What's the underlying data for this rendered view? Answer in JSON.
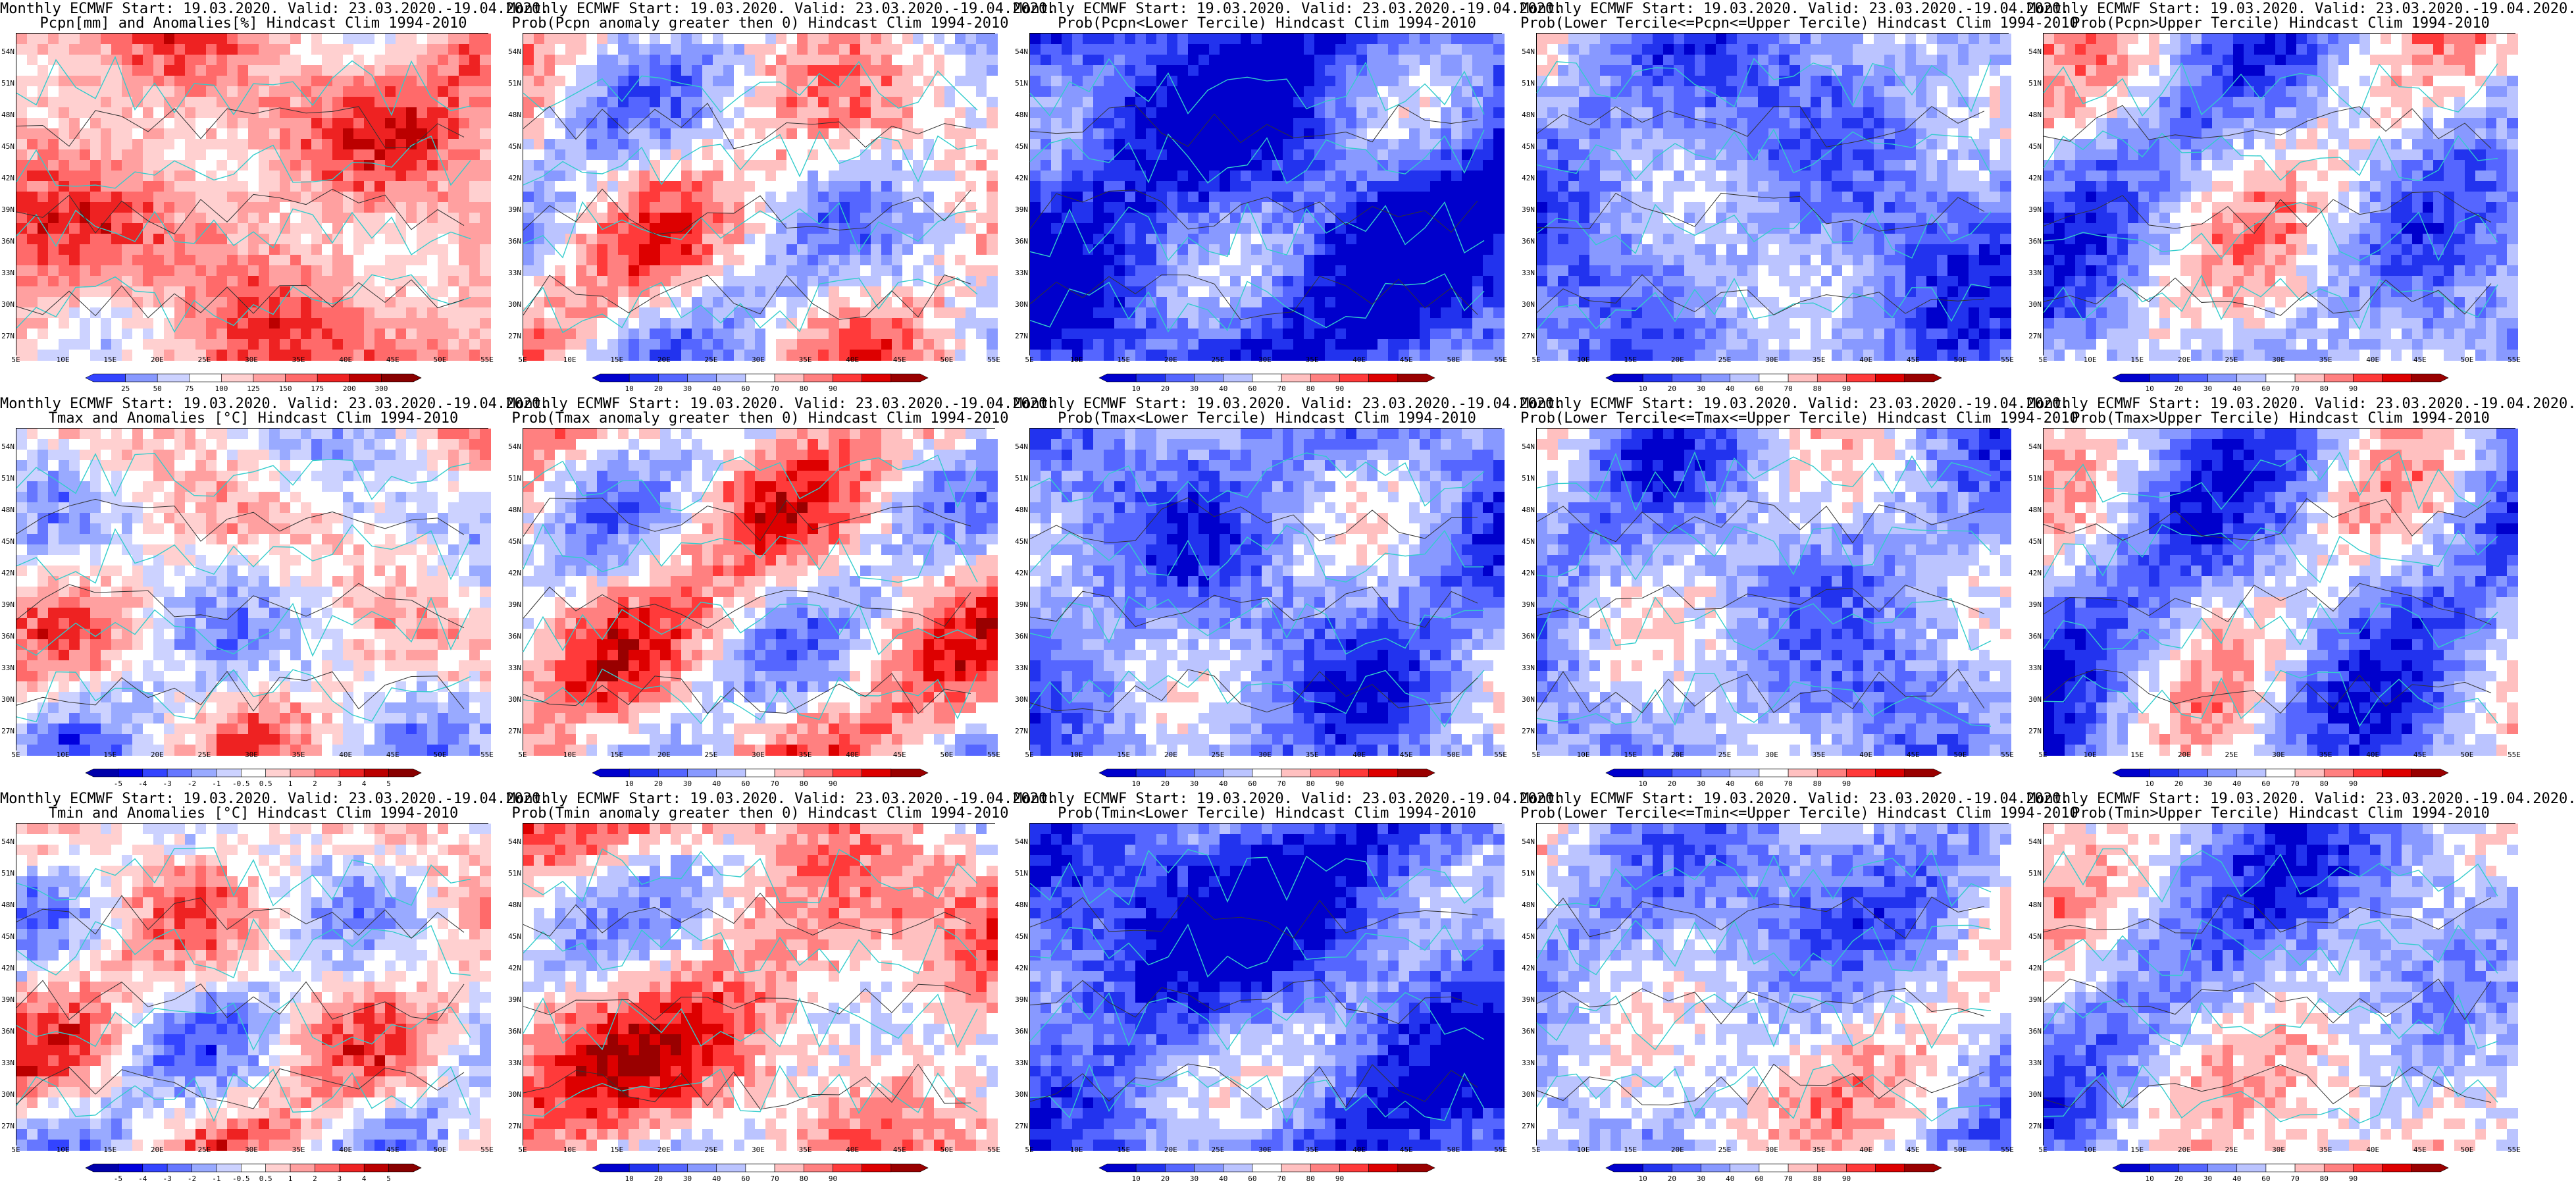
{
  "figure": {
    "latitude_labels": [
      "54N",
      "51N",
      "48N",
      "45N",
      "42N",
      "39N",
      "36N",
      "33N",
      "30N",
      "27N"
    ],
    "longitude_labels": [
      "5E",
      "10E",
      "15E",
      "20E",
      "25E",
      "30E",
      "35E",
      "40E",
      "45E",
      "50E",
      "55E"
    ],
    "colors": {
      "frame": "#000000",
      "coast": "#33cccc",
      "contour": "#333333"
    }
  },
  "panels": [
    {
      "title1": "Monthly ECMWF Start: 19.03.2020. Valid: 23.03.2020.-19.04.2020.",
      "title2": "Pcpn[mm] and Anomalies[%]",
      "title2b": " Hindcast Clim 1994-2010",
      "kind": "pcpn_anom",
      "bias": 0.55,
      "colorbar": [
        "25",
        "50",
        "75",
        "100",
        "125",
        "150",
        "175",
        "200",
        "300"
      ]
    },
    {
      "title1": "Monthly ECMWF Start: 19.03.2020. Valid: 23.03.2020.-19.04.2020.",
      "title2": "Prob(Pcpn anomaly greater then 0)",
      "title2b": " Hindcast Clim 1994-2010",
      "kind": "prob",
      "bias": 0.5,
      "colorbar": [
        "10",
        "20",
        "30",
        "40",
        "60",
        "70",
        "80",
        "90"
      ]
    },
    {
      "title1": "Monthly ECMWF Start: 19.03.2020. Valid: 23.03.2020.-19.04.2020.",
      "title2": "Prob(Pcpn<Lower Tercile)",
      "title2b": " Hindcast Clim 1994-2010",
      "kind": "prob",
      "bias": 0.15,
      "colorbar": [
        "10",
        "20",
        "30",
        "40",
        "60",
        "70",
        "80",
        "90"
      ]
    },
    {
      "title1": "Monthly ECMWF Start: 19.03.2020. Valid: 23.03.2020.-19.04.2020.",
      "title2": "Prob(Lower Tercile<=Pcpn<=Upper Tercile)",
      "title2b": " Hindcast Clim 1994-2010",
      "kind": "prob",
      "bias": 0.3,
      "colorbar": [
        "10",
        "20",
        "30",
        "40",
        "60",
        "70",
        "80",
        "90"
      ]
    },
    {
      "title1": "Monthly ECMWF Start: 19.03.2020. Valid: 23.03.2020.-19.04.2020.",
      "title2": "Prob(Pcpn>Upper Tercile)",
      "title2b": " Hindcast Clim 1994-2010",
      "kind": "prob",
      "bias": 0.4,
      "colorbar": [
        "10",
        "20",
        "30",
        "40",
        "60",
        "70",
        "80",
        "90"
      ]
    },
    {
      "title1": "Monthly ECMWF Start: 19.03.2020. Valid: 23.03.2020.-19.04.2020.",
      "title2": "Tmax and Anomalies [°C]",
      "title2b": " Hindcast Clim 1994-2010",
      "kind": "temp_anom",
      "bias": 0.5,
      "colorbar": [
        "-5",
        "-4",
        "-3",
        "-2",
        "-1",
        "-0.5",
        "0.5",
        "1",
        "2",
        "3",
        "4",
        "5"
      ]
    },
    {
      "title1": "Monthly ECMWF Start: 19.03.2020. Valid: 23.03.2020.-19.04.2020.",
      "title2": "Prob(Tmax anomaly greater then 0)",
      "title2b": " Hindcast Clim 1994-2010",
      "kind": "prob",
      "bias": 0.55,
      "colorbar": [
        "10",
        "20",
        "30",
        "40",
        "60",
        "70",
        "80",
        "90"
      ]
    },
    {
      "title1": "Monthly ECMWF Start: 19.03.2020. Valid: 23.03.2020.-19.04.2020.",
      "title2": "Prob(Tmax<Lower Tercile)",
      "title2b": " Hindcast Clim 1994-2010",
      "kind": "prob",
      "bias": 0.3,
      "colorbar": [
        "10",
        "20",
        "30",
        "40",
        "60",
        "70",
        "80",
        "90"
      ]
    },
    {
      "title1": "Monthly ECMWF Start: 19.03.2020. Valid: 23.03.2020.-19.04.2020.",
      "title2": "Prob(Lower Tercile<=Tmax<=Upper Tercile)",
      "title2b": " Hindcast Clim 1994-2010",
      "kind": "prob",
      "bias": 0.35,
      "colorbar": [
        "10",
        "20",
        "30",
        "40",
        "60",
        "70",
        "80",
        "90"
      ]
    },
    {
      "title1": "Monthly ECMWF Start: 19.03.2020. Valid: 23.03.2020.-19.04.2020.",
      "title2": "Prob(Tmax>Upper Tercile)",
      "title2b": " Hindcast Clim 1994-2010",
      "kind": "prob",
      "bias": 0.35,
      "colorbar": [
        "10",
        "20",
        "30",
        "40",
        "60",
        "70",
        "80",
        "90"
      ]
    },
    {
      "title1": "Monthly ECMWF Start: 19.03.2020. Valid: 23.03.2020.-19.04.2020.",
      "title2": "Tmin and Anomalies [°C]",
      "title2b": " Hindcast Clim 1994-2010",
      "kind": "temp_anom",
      "bias": 0.52,
      "colorbar": [
        "-5",
        "-4",
        "-3",
        "-2",
        "-1",
        "-0.5",
        "0.5",
        "1",
        "2",
        "3",
        "4",
        "5"
      ]
    },
    {
      "title1": "Monthly ECMWF Start: 19.03.2020. Valid: 23.03.2020.-19.04.2020.",
      "title2": "Prob(Tmin anomaly greater then 0)",
      "title2b": " Hindcast Clim 1994-2010",
      "kind": "prob",
      "bias": 0.6,
      "colorbar": [
        "10",
        "20",
        "30",
        "40",
        "60",
        "70",
        "80",
        "90"
      ]
    },
    {
      "title1": "Monthly ECMWF Start: 19.03.2020. Valid: 23.03.2020.-19.04.2020.",
      "title2": "Prob(Tmin<Lower Tercile)",
      "title2b": " Hindcast Clim 1994-2010",
      "kind": "prob",
      "bias": 0.2,
      "colorbar": [
        "10",
        "20",
        "30",
        "40",
        "60",
        "70",
        "80",
        "90"
      ]
    },
    {
      "title1": "Monthly ECMWF Start: 19.03.2020. Valid: 23.03.2020.-19.04.2020.",
      "title2": "Prob(Lower Tercile<=Tmin<=Upper Tercile)",
      "title2b": " Hindcast Clim 1994-2010",
      "kind": "prob",
      "bias": 0.4,
      "colorbar": [
        "10",
        "20",
        "30",
        "40",
        "60",
        "70",
        "80",
        "90"
      ]
    },
    {
      "title1": "Monthly ECMWF Start: 19.03.2020. Valid: 23.03.2020.-19.04.2020.",
      "title2": "Prob(Tmin>Upper Tercile)",
      "title2b": " Hindcast Clim 1994-2010",
      "kind": "prob",
      "bias": 0.4,
      "colorbar": [
        "10",
        "20",
        "30",
        "40",
        "60",
        "70",
        "80",
        "90"
      ]
    }
  ],
  "chart_data": {
    "type": "heatmap",
    "grid": "3x5 panels",
    "domain": {
      "lon_range": [
        5,
        55
      ],
      "lat_range": [
        25,
        55
      ]
    },
    "valid_period": "23.03.2020.-19.04.2020.",
    "forecast_start": "19.03.2020.",
    "climatology": "1994-2010",
    "rows": [
      [
        "Pcpn[mm] and Anomalies[%]",
        "Prob(Pcpn anomaly greater then 0)",
        "Prob(Pcpn<Lower Tercile)",
        "Prob(Lower Tercile<=Pcpn<=Upper Tercile)",
        "Prob(Pcpn>Upper Tercile)"
      ],
      [
        "Tmax and Anomalies [°C]",
        "Prob(Tmax anomaly greater then 0)",
        "Prob(Tmax<Lower Tercile)",
        "Prob(Lower Tercile<=Tmax<=Upper Tercile)",
        "Prob(Tmax>Upper Tercile)"
      ],
      [
        "Tmin and Anomalies [°C]",
        "Prob(Tmin anomaly greater then 0)",
        "Prob(Tmin<Lower Tercile)",
        "Prob(Lower Tercile<=Tmin<=Upper Tercile)",
        "Prob(Tmin>Upper Tercile)"
      ]
    ],
    "colorbar_prob": [
      10,
      20,
      30,
      40,
      60,
      70,
      80,
      90
    ],
    "colorbar_pcpn": [
      25,
      50,
      75,
      100,
      125,
      150,
      175,
      200,
      300
    ],
    "colorbar_temp": [
      -5,
      -4,
      -3,
      -2,
      -1,
      -0.5,
      0.5,
      1,
      2,
      3,
      4,
      5
    ]
  }
}
